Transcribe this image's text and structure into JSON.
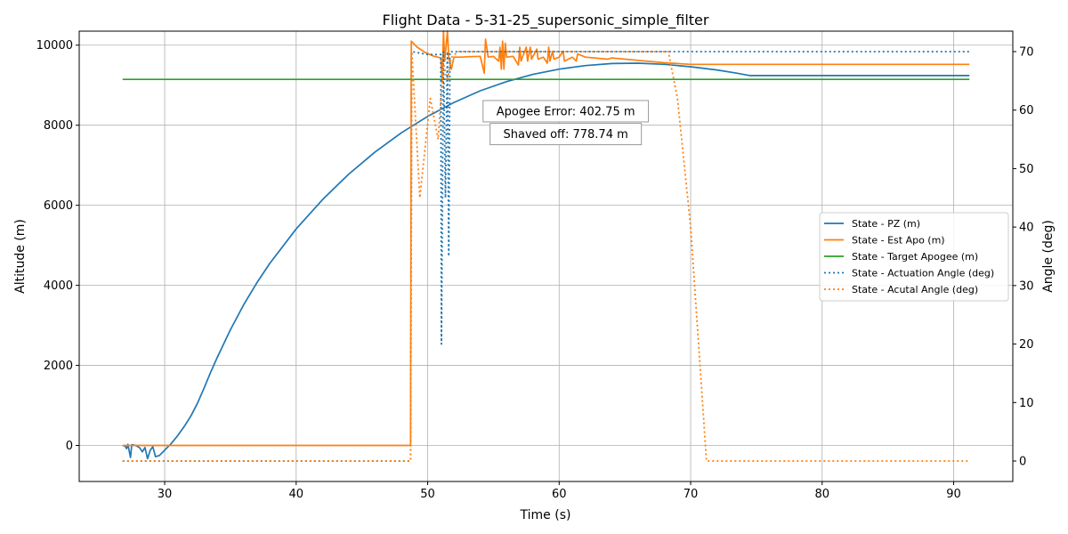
{
  "chart_data": {
    "type": "line",
    "title": "Flight Data - 5-31-25_supersonic_simple_filter",
    "xlabel": "Time (s)",
    "ylabel": "Altitude (m)",
    "y2label": "Angle (deg)",
    "xlim": [
      23.5,
      94.5
    ],
    "ylim": [
      -900,
      10350
    ],
    "y2lim": [
      -3.5,
      73.5
    ],
    "xticks": [
      30,
      40,
      50,
      60,
      70,
      80,
      90
    ],
    "yticks": [
      0,
      2000,
      4000,
      6000,
      8000,
      10000
    ],
    "y2ticks": [
      0,
      10,
      20,
      30,
      40,
      50,
      60,
      70
    ],
    "grid": true,
    "legend_position": "center-right",
    "annotations": [
      {
        "text": "Apogee Error: 402.75 m",
        "x": 60.5,
        "y": 8350
      },
      {
        "text": "Shaved off: 778.74 m",
        "x": 60.5,
        "y": 7780
      }
    ],
    "series": [
      {
        "name": "State - PZ (m)",
        "axis": "left",
        "color": "#1f77b4",
        "style": "solid",
        "points": [
          [
            26.8,
            0
          ],
          [
            27.0,
            -20
          ],
          [
            27.1,
            -80
          ],
          [
            27.2,
            30
          ],
          [
            27.4,
            -300
          ],
          [
            27.5,
            20
          ],
          [
            27.8,
            0
          ],
          [
            28.1,
            -60
          ],
          [
            28.3,
            -160
          ],
          [
            28.5,
            -50
          ],
          [
            28.7,
            -330
          ],
          [
            28.9,
            -120
          ],
          [
            29.1,
            -30
          ],
          [
            29.3,
            -280
          ],
          [
            29.6,
            -250
          ],
          [
            30.0,
            -120
          ],
          [
            30.5,
            50
          ],
          [
            31.0,
            250
          ],
          [
            31.5,
            480
          ],
          [
            32.0,
            740
          ],
          [
            32.5,
            1060
          ],
          [
            33.0,
            1440
          ],
          [
            33.5,
            1830
          ],
          [
            34.0,
            2200
          ],
          [
            35.0,
            2890
          ],
          [
            36.0,
            3510
          ],
          [
            37.0,
            4060
          ],
          [
            38.0,
            4550
          ],
          [
            40.0,
            5410
          ],
          [
            42.0,
            6140
          ],
          [
            44.0,
            6780
          ],
          [
            46.0,
            7330
          ],
          [
            48.0,
            7810
          ],
          [
            50.0,
            8220
          ],
          [
            52.0,
            8570
          ],
          [
            54.0,
            8860
          ],
          [
            56.0,
            9090
          ],
          [
            58.0,
            9270
          ],
          [
            60.0,
            9400
          ],
          [
            62.0,
            9490
          ],
          [
            64.0,
            9540
          ],
          [
            66.0,
            9550
          ],
          [
            68.0,
            9520
          ],
          [
            70.0,
            9460
          ],
          [
            72.0,
            9380
          ],
          [
            73.5,
            9300
          ],
          [
            74.5,
            9240
          ],
          [
            80.0,
            9240
          ],
          [
            91.2,
            9240
          ]
        ]
      },
      {
        "name": "State - Est Apo (m)",
        "axis": "left",
        "color": "#ff7f0e",
        "style": "solid",
        "points": [
          [
            26.8,
            0
          ],
          [
            48.7,
            0
          ],
          [
            48.75,
            10100
          ],
          [
            49.2,
            9950
          ],
          [
            49.8,
            9820
          ],
          [
            50.5,
            9720
          ],
          [
            51.0,
            9680
          ],
          [
            51.1,
            9100
          ],
          [
            51.2,
            10350
          ],
          [
            51.3,
            9600
          ],
          [
            51.5,
            10350
          ],
          [
            51.6,
            9700
          ],
          [
            51.8,
            9400
          ],
          [
            52.0,
            9700
          ],
          [
            52.5,
            9700
          ],
          [
            53.0,
            9710
          ],
          [
            54.0,
            9720
          ],
          [
            54.3,
            9300
          ],
          [
            54.4,
            10150
          ],
          [
            54.6,
            9700
          ],
          [
            55.0,
            9720
          ],
          [
            55.4,
            9600
          ],
          [
            55.5,
            9950
          ],
          [
            55.6,
            9400
          ],
          [
            55.7,
            10100
          ],
          [
            55.8,
            9400
          ],
          [
            55.9,
            10050
          ],
          [
            56.0,
            9700
          ],
          [
            56.5,
            9720
          ],
          [
            56.9,
            9500
          ],
          [
            57.0,
            9950
          ],
          [
            57.1,
            9600
          ],
          [
            57.5,
            9950
          ],
          [
            57.6,
            9600
          ],
          [
            57.8,
            9950
          ],
          [
            57.9,
            9650
          ],
          [
            58.3,
            9900
          ],
          [
            58.4,
            9650
          ],
          [
            58.8,
            9700
          ],
          [
            59.1,
            9550
          ],
          [
            59.2,
            9950
          ],
          [
            59.3,
            9600
          ],
          [
            59.5,
            9850
          ],
          [
            59.6,
            9650
          ],
          [
            60.0,
            9700
          ],
          [
            60.3,
            9850
          ],
          [
            60.4,
            9600
          ],
          [
            61.0,
            9700
          ],
          [
            61.3,
            9600
          ],
          [
            61.4,
            9780
          ],
          [
            62.0,
            9700
          ],
          [
            63.7,
            9650
          ],
          [
            64.0,
            9680
          ],
          [
            66.0,
            9620
          ],
          [
            68.0,
            9560
          ],
          [
            70.0,
            9520
          ],
          [
            91.2,
            9520
          ]
        ]
      },
      {
        "name": "State - Target Apogee (m)",
        "axis": "left",
        "color": "#2ca02c",
        "style": "solid",
        "points": [
          [
            26.8,
            9144
          ],
          [
            91.2,
            9144
          ]
        ]
      },
      {
        "name": "State - Actuation Angle (deg)",
        "axis": "right",
        "color": "#1f77b4",
        "style": "dotted",
        "points": [
          [
            26.8,
            0
          ],
          [
            48.7,
            0
          ],
          [
            48.8,
            70
          ],
          [
            50.0,
            69.5
          ],
          [
            51.0,
            69.5
          ],
          [
            51.05,
            20
          ],
          [
            51.2,
            70
          ],
          [
            51.35,
            45
          ],
          [
            51.5,
            70
          ],
          [
            51.6,
            35
          ],
          [
            51.7,
            70
          ],
          [
            60.0,
            70
          ],
          [
            91.2,
            70
          ]
        ]
      },
      {
        "name": "State - Acutal Angle (deg)",
        "axis": "right",
        "color": "#ff7f0e",
        "style": "dotted",
        "points": [
          [
            26.8,
            0
          ],
          [
            48.7,
            0
          ],
          [
            48.8,
            70
          ],
          [
            49.4,
            45
          ],
          [
            50.2,
            62
          ],
          [
            50.8,
            55
          ],
          [
            51.2,
            68
          ],
          [
            51.5,
            65
          ],
          [
            51.8,
            69
          ],
          [
            52.3,
            70
          ],
          [
            60.0,
            70
          ],
          [
            68.3,
            70
          ],
          [
            69.0,
            62
          ],
          [
            70.0,
            40
          ],
          [
            70.6,
            20
          ],
          [
            71.2,
            0
          ],
          [
            91.2,
            0
          ]
        ]
      }
    ]
  }
}
